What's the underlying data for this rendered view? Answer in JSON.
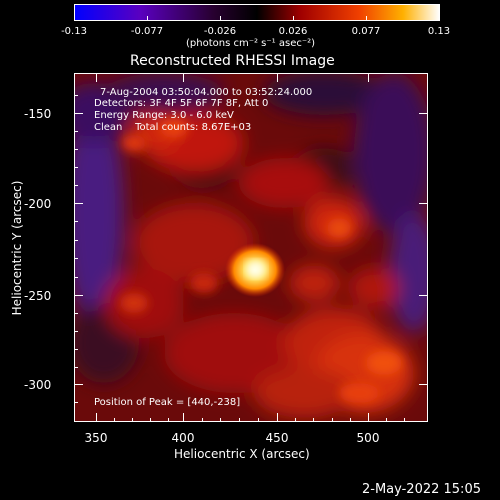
{
  "colorbar": {
    "ticks": [
      "-0.13",
      "-0.077",
      "-0.026",
      "0.026",
      "0.077",
      "0.13"
    ],
    "unit_label": "(photons cm⁻² s⁻¹ asec⁻²)",
    "range": [
      -0.13,
      0.13
    ]
  },
  "title": "Reconstructed RHESSI Image",
  "info": {
    "line1": "7-Aug-2004 03:50:04.000 to 03:52:24.000",
    "line2": "Detectors: 3F 4F 5F 6F 7F 8F, Att 0",
    "line3": "Energy Range: 3.0 - 6.0 keV",
    "line4": "Clean    Total counts: 8.67E+03",
    "peak": "Position of Peak = [440,-238]"
  },
  "x_axis": {
    "label": "Heliocentric X (arcsec)",
    "ticks": [
      "350",
      "400",
      "450",
      "500"
    ]
  },
  "y_axis": {
    "label": "Heliocentric Y (arcsec)",
    "ticks": [
      "-150",
      "-200",
      "-250",
      "-300"
    ]
  },
  "timestamp": "2-May-2022 15:05",
  "colors": {
    "colormap": [
      "#0000ff",
      "#5a00b0",
      "#300040",
      "#000000",
      "#8a0000",
      "#e83000",
      "#ff9a00",
      "#ffffe8"
    ]
  }
}
